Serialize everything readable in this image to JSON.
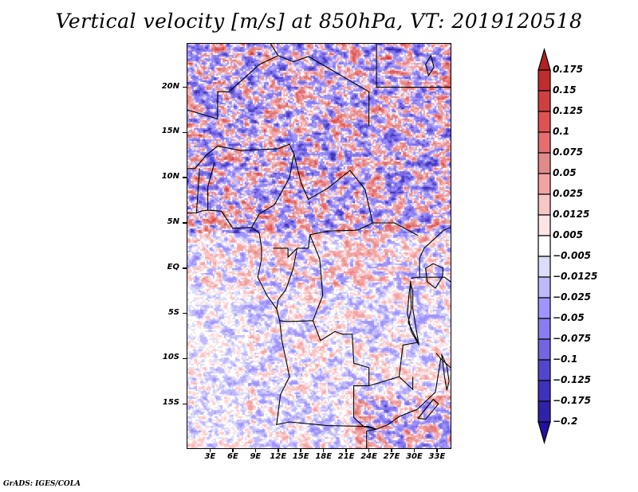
{
  "title": "Vertical velocity [m/s] at 850hPa, VT: 2019120518",
  "footer": "GrADS: IGES/COLA",
  "map": {
    "variable": "Vertical velocity",
    "units": "m/s",
    "level": "850hPa",
    "valid_time": "2019120518",
    "lon_range": [
      0,
      34.8
    ],
    "lat_range": [
      -19.9,
      24.8
    ],
    "lat_ticks": [
      {
        "value": 20,
        "label": "20N"
      },
      {
        "value": 15,
        "label": "15N"
      },
      {
        "value": 10,
        "label": "10N"
      },
      {
        "value": 5,
        "label": "5N"
      },
      {
        "value": 0,
        "label": "EQ"
      },
      {
        "value": -5,
        "label": "5S"
      },
      {
        "value": -10,
        "label": "10S"
      },
      {
        "value": -15,
        "label": "15S"
      }
    ],
    "lon_ticks": [
      {
        "value": 3,
        "label": "3E"
      },
      {
        "value": 6,
        "label": "6E"
      },
      {
        "value": 9,
        "label": "9E"
      },
      {
        "value": 12,
        "label": "12E"
      },
      {
        "value": 15,
        "label": "15E"
      },
      {
        "value": 18,
        "label": "18E"
      },
      {
        "value": 21,
        "label": "21E"
      },
      {
        "value": 24,
        "label": "24E"
      },
      {
        "value": 27,
        "label": "27E"
      },
      {
        "value": 30,
        "label": "30E"
      },
      {
        "value": 33,
        "label": "33E"
      }
    ]
  },
  "colorbar": {
    "levels": [
      "0.175",
      "0.15",
      "0.125",
      "0.1",
      "0.075",
      "0.05",
      "0.025",
      "0.0125",
      "0.005",
      "-0.005",
      "-0.0125",
      "-0.025",
      "-0.05",
      "-0.075",
      "-0.1",
      "-0.125",
      "-0.175",
      "-0.2"
    ],
    "colors": [
      "#b22222",
      "#c12c2c",
      "#cf3f3f",
      "#e05252",
      "#e66e6e",
      "#e28a8a",
      "#f4a3a3",
      "#f9c6c6",
      "#fde4e4",
      "#ffffff",
      "#dcdcfb",
      "#c0b8fc",
      "#a094fc",
      "#8a7cf0",
      "#7464e0",
      "#5246cc",
      "#3e32bc",
      "#2e22a8",
      "#22109e"
    ]
  }
}
